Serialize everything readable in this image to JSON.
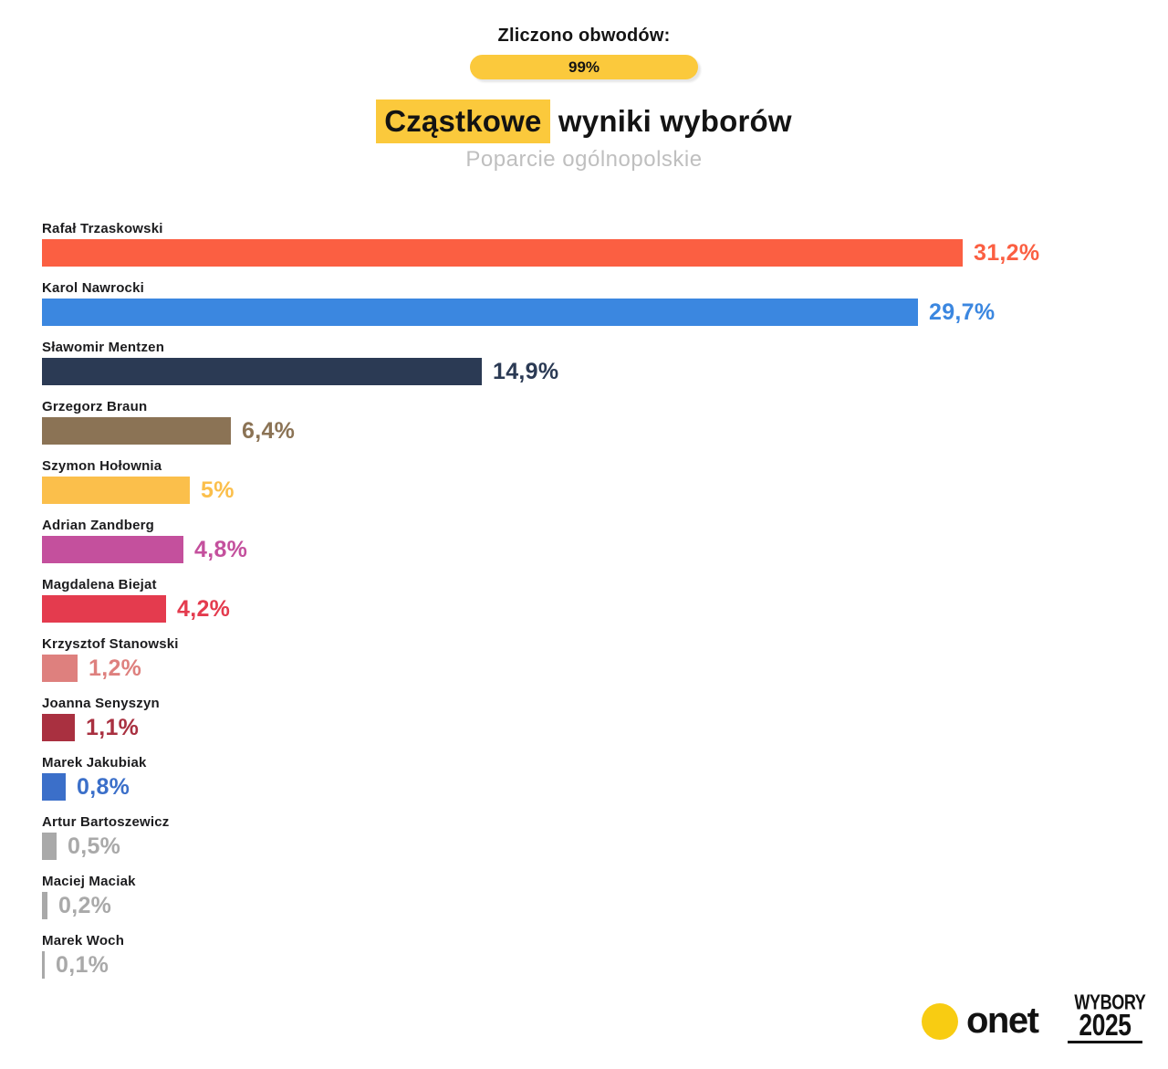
{
  "header": {
    "counted_label": "Zliczono obwodów:",
    "counted_value": "99%",
    "title_highlight": "Cząstkowe",
    "title_rest": " wyniki wyborów",
    "subtitle": "Poparcie ogólnopolskie"
  },
  "chart_data": {
    "type": "bar",
    "orientation": "horizontal",
    "title": "Cząstkowe wyniki wyborów",
    "subtitle": "Poparcie ogólnopolskie",
    "unit": "%",
    "xlim": [
      0,
      33
    ],
    "grid": false,
    "legend": "none",
    "categories": [
      "Rafał Trzaskowski",
      "Karol Nawrocki",
      "Sławomir Mentzen",
      "Grzegorz Braun",
      "Szymon Hołownia",
      "Adrian Zandberg",
      "Magdalena Biejat",
      "Krzysztof Stanowski",
      "Joanna Senyszyn",
      "Marek Jakubiak",
      "Artur Bartoszewicz",
      "Maciej Maciak",
      "Marek Woch"
    ],
    "values": [
      31.2,
      29.7,
      14.9,
      6.4,
      5,
      4.8,
      4.2,
      1.2,
      1.1,
      0.8,
      0.5,
      0.2,
      0.1
    ],
    "value_labels": [
      "31,2%",
      "29,7%",
      "14,9%",
      "6,4%",
      "5%",
      "4,8%",
      "4,2%",
      "1,2%",
      "1,1%",
      "0,8%",
      "0,5%",
      "0,2%",
      "0,1%"
    ],
    "bar_colors": [
      "#FB5F42",
      "#3B87E0",
      "#2B3A54",
      "#8B7355",
      "#FBBF4B",
      "#C4509D",
      "#E43B4E",
      "#DE807E",
      "#A93040",
      "#3B6FC9",
      "#A9A9A9",
      "#A9A9A9",
      "#A9A9A9"
    ]
  },
  "footer": {
    "onet_label": "onet",
    "wybory_line1": "WYBORY",
    "wybory_line2": "2025"
  },
  "colors": {
    "accent_yellow": "#FBC93C",
    "onet_yellow": "#F8CC12",
    "text_dark": "#141414",
    "subtitle_gray": "#BFBFBF"
  }
}
